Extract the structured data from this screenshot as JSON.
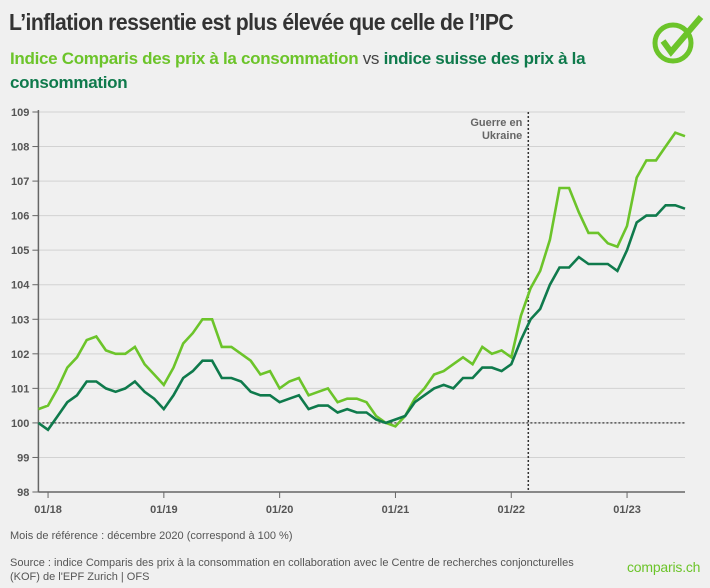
{
  "title": "L’inflation ressentie est plus élevée que celle de l’IPC",
  "subtitle": {
    "part1": "Indice Comparis des prix à la consommation",
    "vs": "vs",
    "part2": "indice suisse des prix à la consommation"
  },
  "note": "Mois de référence : décembre 2020 (correspond à 100 %)",
  "source": "Source : indice Comparis des prix à la consommation en collaboration avec le Centre de recherches conjoncturelles (KOF) de l'EPF Zurich | OFS",
  "brand": "comparis.ch",
  "logo_icon": "check-circle-icon",
  "colors": {
    "comparis": "#6cc42a",
    "cpi": "#0f7a4c",
    "grid": "#d2d2d2",
    "axis": "#666666",
    "background": "#f0f0f0"
  },
  "chart_data": {
    "type": "line",
    "title": "",
    "xlabel": "",
    "ylabel": "",
    "x_start": "2017-12",
    "x_frequency": "monthly",
    "x_ticks": [
      "01/18",
      "01/19",
      "01/20",
      "01/21",
      "01/22",
      "01/23"
    ],
    "ylim": [
      98,
      109
    ],
    "y_ticks": [
      98,
      99,
      100,
      101,
      102,
      103,
      104,
      105,
      106,
      107,
      108,
      109
    ],
    "grid": true,
    "reference_line": {
      "y": 100,
      "style": "dotted"
    },
    "annotation": {
      "label": "Guerre en Ukraine",
      "x": "2022-02-24",
      "style": "dotted vertical"
    },
    "series": [
      {
        "name": "Indice Comparis des prix à la consommation",
        "color": "#6cc42a",
        "values": [
          100.4,
          100.5,
          101.0,
          101.6,
          101.9,
          102.4,
          102.5,
          102.1,
          102.0,
          102.0,
          102.2,
          101.7,
          101.4,
          101.1,
          101.6,
          102.3,
          102.6,
          103.0,
          103.0,
          102.2,
          102.2,
          102.0,
          101.8,
          101.4,
          101.5,
          101.0,
          101.2,
          101.3,
          100.8,
          100.9,
          101.0,
          100.6,
          100.7,
          100.7,
          100.6,
          100.2,
          100.0,
          99.9,
          100.2,
          100.7,
          101.0,
          101.4,
          101.5,
          101.7,
          101.9,
          101.7,
          102.2,
          102.0,
          102.1,
          101.9,
          103.1,
          103.9,
          104.4,
          105.3,
          106.8,
          106.8,
          106.1,
          105.5,
          105.5,
          105.2,
          105.1,
          105.7,
          107.1,
          107.6,
          107.6,
          108.0,
          108.4,
          108.3
        ]
      },
      {
        "name": "indice suisse des prix à la consommation",
        "color": "#0f7a4c",
        "values": [
          100.0,
          99.8,
          100.2,
          100.6,
          100.8,
          101.2,
          101.2,
          101.0,
          100.9,
          101.0,
          101.2,
          100.9,
          100.7,
          100.4,
          100.8,
          101.3,
          101.5,
          101.8,
          101.8,
          101.3,
          101.3,
          101.2,
          100.9,
          100.8,
          100.8,
          100.6,
          100.7,
          100.8,
          100.4,
          100.5,
          100.5,
          100.3,
          100.4,
          100.3,
          100.3,
          100.1,
          100.0,
          100.1,
          100.2,
          100.6,
          100.8,
          101.0,
          101.1,
          101.0,
          101.3,
          101.3,
          101.6,
          101.6,
          101.5,
          101.7,
          102.4,
          103.0,
          103.3,
          104.0,
          104.5,
          104.5,
          104.8,
          104.6,
          104.6,
          104.6,
          104.4,
          105.0,
          105.8,
          106.0,
          106.0,
          106.3,
          106.3,
          106.2
        ]
      }
    ]
  }
}
